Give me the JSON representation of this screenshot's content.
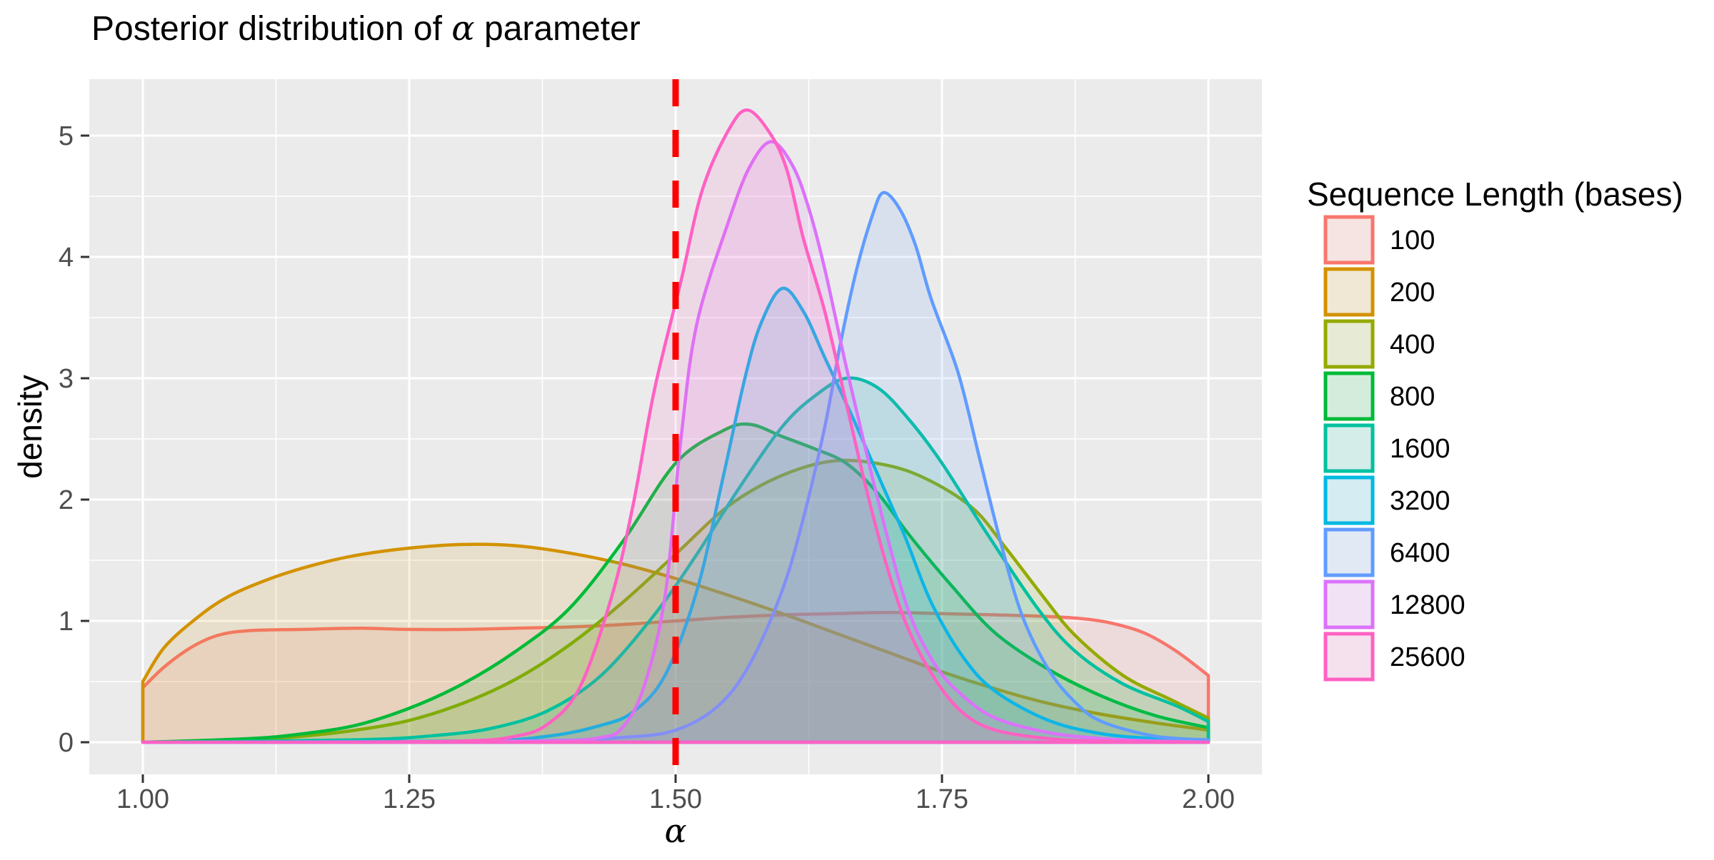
{
  "title": {
    "prefix": "Posterior distribution of ",
    "symbol": "α",
    "suffix": " parameter",
    "full": "Posterior distribution of α parameter"
  },
  "axes": {
    "x_title": "α",
    "y_title": "density",
    "x_tick_labels": [
      "1.00",
      "1.25",
      "1.50",
      "1.75",
      "2.00"
    ],
    "y_tick_labels": [
      "0",
      "1",
      "2",
      "3",
      "4",
      "5"
    ]
  },
  "legend": {
    "title": "Sequence Length (bases)"
  },
  "colors": {
    "panel_background": "#EBEBEB",
    "gridline": "#FFFFFF",
    "tick_mark": "#333333",
    "tick_label": "#4D4D4D",
    "reference_line": "#FF0000"
  },
  "chart_data": {
    "type": "area",
    "subtype": "overlaid-density-curves",
    "title": "Posterior distribution of α parameter",
    "xlabel": "α",
    "ylabel": "density",
    "xlim": [
      0.95,
      2.05
    ],
    "ylim": [
      -0.26,
      5.47
    ],
    "x_major_ticks": [
      1.0,
      1.25,
      1.5,
      1.75,
      2.0
    ],
    "x_minor_ticks": [
      1.125,
      1.375,
      1.625,
      1.875
    ],
    "y_major_ticks": [
      0,
      1,
      2,
      3,
      4,
      5
    ],
    "y_minor_ticks": [
      0.5,
      1.5,
      2.5,
      3.5,
      4.5
    ],
    "grid": true,
    "legend_position": "right",
    "legend_title": "Sequence Length (bases)",
    "fill_opacity": 0.13,
    "reference_line": {
      "x": 1.5,
      "color": "#FF0000",
      "linetype": "dashed"
    },
    "series": [
      {
        "name": "100",
        "color": "#F8766D",
        "points": [
          [
            1.0,
            0.45
          ],
          [
            1.02,
            0.62
          ],
          [
            1.045,
            0.78
          ],
          [
            1.07,
            0.88
          ],
          [
            1.1,
            0.92
          ],
          [
            1.15,
            0.93
          ],
          [
            1.2,
            0.94
          ],
          [
            1.25,
            0.93
          ],
          [
            1.3,
            0.93
          ],
          [
            1.35,
            0.94
          ],
          [
            1.4,
            0.95
          ],
          [
            1.45,
            0.97
          ],
          [
            1.5,
            1.0
          ],
          [
            1.55,
            1.03
          ],
          [
            1.6,
            1.05
          ],
          [
            1.65,
            1.06
          ],
          [
            1.7,
            1.07
          ],
          [
            1.75,
            1.06
          ],
          [
            1.8,
            1.05
          ],
          [
            1.84,
            1.04
          ],
          [
            1.88,
            1.02
          ],
          [
            1.91,
            0.98
          ],
          [
            1.94,
            0.9
          ],
          [
            1.97,
            0.75
          ],
          [
            2.0,
            0.55
          ]
        ]
      },
      {
        "name": "200",
        "color": "#D39200",
        "points": [
          [
            1.0,
            0.5
          ],
          [
            1.02,
            0.78
          ],
          [
            1.05,
            1.02
          ],
          [
            1.08,
            1.2
          ],
          [
            1.12,
            1.35
          ],
          [
            1.16,
            1.46
          ],
          [
            1.2,
            1.54
          ],
          [
            1.25,
            1.6
          ],
          [
            1.3,
            1.63
          ],
          [
            1.35,
            1.62
          ],
          [
            1.4,
            1.56
          ],
          [
            1.45,
            1.47
          ],
          [
            1.5,
            1.35
          ],
          [
            1.55,
            1.21
          ],
          [
            1.6,
            1.06
          ],
          [
            1.65,
            0.9
          ],
          [
            1.7,
            0.74
          ],
          [
            1.75,
            0.58
          ],
          [
            1.8,
            0.44
          ],
          [
            1.85,
            0.32
          ],
          [
            1.9,
            0.23
          ],
          [
            1.95,
            0.16
          ],
          [
            2.0,
            0.1
          ]
        ]
      },
      {
        "name": "400",
        "color": "#93AA00",
        "points": [
          [
            1.0,
            0
          ],
          [
            1.1,
            0.02
          ],
          [
            1.15,
            0.05
          ],
          [
            1.2,
            0.1
          ],
          [
            1.25,
            0.18
          ],
          [
            1.3,
            0.32
          ],
          [
            1.35,
            0.52
          ],
          [
            1.4,
            0.8
          ],
          [
            1.45,
            1.15
          ],
          [
            1.5,
            1.55
          ],
          [
            1.55,
            1.95
          ],
          [
            1.6,
            2.2
          ],
          [
            1.65,
            2.32
          ],
          [
            1.7,
            2.28
          ],
          [
            1.74,
            2.15
          ],
          [
            1.78,
            1.92
          ],
          [
            1.81,
            1.6
          ],
          [
            1.845,
            1.2
          ],
          [
            1.875,
            0.88
          ],
          [
            1.92,
            0.55
          ],
          [
            1.965,
            0.35
          ],
          [
            2.0,
            0.2
          ]
        ]
      },
      {
        "name": "800",
        "color": "#00BA38",
        "points": [
          [
            1.0,
            0
          ],
          [
            1.1,
            0.03
          ],
          [
            1.15,
            0.07
          ],
          [
            1.2,
            0.14
          ],
          [
            1.25,
            0.28
          ],
          [
            1.3,
            0.48
          ],
          [
            1.35,
            0.75
          ],
          [
            1.4,
            1.1
          ],
          [
            1.45,
            1.65
          ],
          [
            1.5,
            2.3
          ],
          [
            1.545,
            2.57
          ],
          [
            1.57,
            2.62
          ],
          [
            1.6,
            2.52
          ],
          [
            1.63,
            2.42
          ],
          [
            1.66,
            2.3
          ],
          [
            1.69,
            2.05
          ],
          [
            1.72,
            1.7
          ],
          [
            1.76,
            1.28
          ],
          [
            1.8,
            0.9
          ],
          [
            1.85,
            0.6
          ],
          [
            1.9,
            0.38
          ],
          [
            1.95,
            0.22
          ],
          [
            2.0,
            0.12
          ]
        ]
      },
      {
        "name": "1600",
        "color": "#00C19F",
        "points": [
          [
            1.0,
            0
          ],
          [
            1.2,
            0.02
          ],
          [
            1.28,
            0.06
          ],
          [
            1.33,
            0.12
          ],
          [
            1.38,
            0.26
          ],
          [
            1.43,
            0.55
          ],
          [
            1.48,
            1.05
          ],
          [
            1.52,
            1.55
          ],
          [
            1.56,
            2.1
          ],
          [
            1.6,
            2.6
          ],
          [
            1.63,
            2.85
          ],
          [
            1.66,
            3.0
          ],
          [
            1.69,
            2.92
          ],
          [
            1.72,
            2.65
          ],
          [
            1.75,
            2.3
          ],
          [
            1.79,
            1.75
          ],
          [
            1.84,
            1.1
          ],
          [
            1.875,
            0.75
          ],
          [
            1.92,
            0.48
          ],
          [
            1.97,
            0.3
          ],
          [
            2.0,
            0.17
          ]
        ]
      },
      {
        "name": "3200",
        "color": "#00B9E3",
        "points": [
          [
            1.0,
            0
          ],
          [
            1.3,
            0.01
          ],
          [
            1.38,
            0.05
          ],
          [
            1.43,
            0.14
          ],
          [
            1.46,
            0.25
          ],
          [
            1.49,
            0.55
          ],
          [
            1.52,
            1.25
          ],
          [
            1.545,
            2.2
          ],
          [
            1.565,
            3.0
          ],
          [
            1.58,
            3.45
          ],
          [
            1.6,
            3.74
          ],
          [
            1.62,
            3.55
          ],
          [
            1.64,
            3.17
          ],
          [
            1.665,
            2.7
          ],
          [
            1.69,
            2.2
          ],
          [
            1.715,
            1.7
          ],
          [
            1.74,
            1.15
          ],
          [
            1.77,
            0.7
          ],
          [
            1.8,
            0.42
          ],
          [
            1.85,
            0.18
          ],
          [
            1.9,
            0.07
          ],
          [
            1.95,
            0.03
          ],
          [
            2.0,
            0.01
          ]
        ]
      },
      {
        "name": "6400",
        "color": "#619CFF",
        "points": [
          [
            1.0,
            0
          ],
          [
            1.35,
            0.01
          ],
          [
            1.45,
            0.04
          ],
          [
            1.5,
            0.1
          ],
          [
            1.54,
            0.3
          ],
          [
            1.57,
            0.65
          ],
          [
            1.6,
            1.25
          ],
          [
            1.62,
            1.85
          ],
          [
            1.64,
            2.6
          ],
          [
            1.655,
            3.3
          ],
          [
            1.67,
            3.9
          ],
          [
            1.685,
            4.35
          ],
          [
            1.695,
            4.53
          ],
          [
            1.71,
            4.4
          ],
          [
            1.725,
            4.1
          ],
          [
            1.74,
            3.65
          ],
          [
            1.765,
            3.05
          ],
          [
            1.785,
            2.35
          ],
          [
            1.805,
            1.65
          ],
          [
            1.825,
            1.05
          ],
          [
            1.85,
            0.6
          ],
          [
            1.875,
            0.33
          ],
          [
            1.9,
            0.17
          ],
          [
            1.95,
            0.05
          ],
          [
            2.0,
            0.02
          ]
        ]
      },
      {
        "name": "12800",
        "color": "#DB72FB",
        "points": [
          [
            1.0,
            0
          ],
          [
            1.2,
            0
          ],
          [
            1.38,
            0.01
          ],
          [
            1.43,
            0.04
          ],
          [
            1.45,
            0.12
          ],
          [
            1.47,
            0.45
          ],
          [
            1.49,
            1.2
          ],
          [
            1.505,
            2.5
          ],
          [
            1.52,
            3.45
          ],
          [
            1.55,
            4.3
          ],
          [
            1.57,
            4.75
          ],
          [
            1.59,
            4.95
          ],
          [
            1.61,
            4.75
          ],
          [
            1.625,
            4.4
          ],
          [
            1.64,
            3.9
          ],
          [
            1.66,
            3.1
          ],
          [
            1.68,
            2.35
          ],
          [
            1.7,
            1.65
          ],
          [
            1.72,
            1.05
          ],
          [
            1.745,
            0.62
          ],
          [
            1.77,
            0.38
          ],
          [
            1.8,
            0.2
          ],
          [
            1.85,
            0.08
          ],
          [
            1.9,
            0.03
          ],
          [
            1.95,
            0.01
          ],
          [
            2.0,
            0
          ]
        ]
      },
      {
        "name": "25600",
        "color": "#FF61C3",
        "points": [
          [
            1.0,
            0
          ],
          [
            1.15,
            0
          ],
          [
            1.3,
            0.01
          ],
          [
            1.35,
            0.05
          ],
          [
            1.38,
            0.15
          ],
          [
            1.41,
            0.45
          ],
          [
            1.44,
            1.2
          ],
          [
            1.46,
            1.95
          ],
          [
            1.48,
            2.9
          ],
          [
            1.505,
            3.8
          ],
          [
            1.525,
            4.55
          ],
          [
            1.55,
            5.05
          ],
          [
            1.568,
            5.21
          ],
          [
            1.59,
            5.0
          ],
          [
            1.605,
            4.7
          ],
          [
            1.62,
            4.15
          ],
          [
            1.64,
            3.55
          ],
          [
            1.66,
            2.8
          ],
          [
            1.68,
            2.05
          ],
          [
            1.7,
            1.4
          ],
          [
            1.72,
            0.9
          ],
          [
            1.745,
            0.5
          ],
          [
            1.77,
            0.24
          ],
          [
            1.8,
            0.1
          ],
          [
            1.85,
            0.03
          ],
          [
            1.9,
            0.01
          ],
          [
            2.0,
            0
          ]
        ]
      }
    ]
  }
}
